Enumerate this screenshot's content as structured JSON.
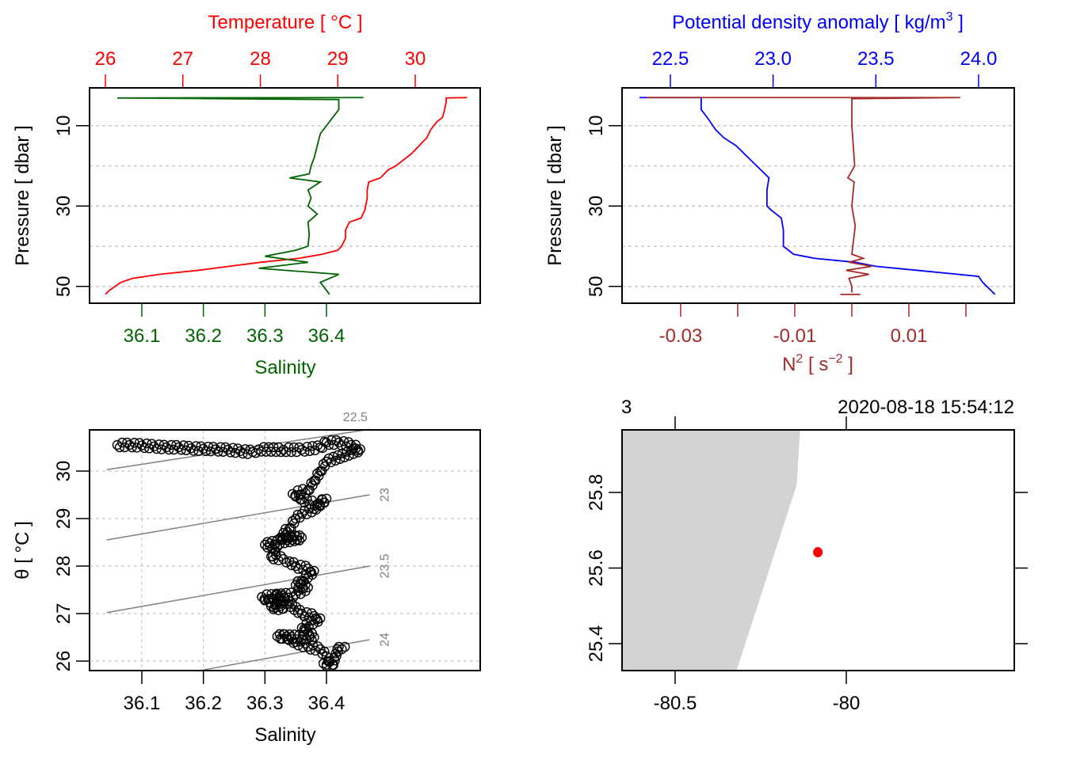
{
  "chart_data": [
    {
      "type": "line",
      "panel": "profile-temperature-salinity",
      "y_axis": {
        "label": "Pressure [ dbar ]",
        "ticks": [
          10,
          30,
          50
        ],
        "range": [
          0,
          53
        ],
        "reversed": true,
        "grid_at": [
          10,
          20,
          30,
          40,
          50
        ]
      },
      "top_axis": {
        "label": "Temperature [ °C ]",
        "ticks": [
          "26",
          "27",
          "28",
          "29",
          "30"
        ],
        "tick_values": [
          26,
          27,
          28,
          29,
          30
        ],
        "color": "#ff0000"
      },
      "bottom_axis": {
        "label": "Salinity",
        "ticks": [
          "36.1",
          "36.2",
          "36.3",
          "36.4"
        ],
        "tick_values": [
          36.1,
          36.2,
          36.3,
          36.4
        ],
        "color": "#006400"
      },
      "series": [
        {
          "name": "Temperature",
          "color": "#ff0000",
          "points": [
            [
              30.67,
              3
            ],
            [
              30.4,
              3.1
            ],
            [
              30.4,
              4
            ],
            [
              30.38,
              6
            ],
            [
              30.35,
              8
            ],
            [
              30.28,
              9
            ],
            [
              30.2,
              11
            ],
            [
              30.15,
              13
            ],
            [
              30.05,
              15
            ],
            [
              29.95,
              17
            ],
            [
              29.85,
              18.5
            ],
            [
              29.75,
              20
            ],
            [
              29.65,
              21
            ],
            [
              29.55,
              23
            ],
            [
              29.4,
              24
            ],
            [
              29.38,
              26
            ],
            [
              29.38,
              28
            ],
            [
              29.35,
              31
            ],
            [
              29.3,
              33
            ],
            [
              29.15,
              34
            ],
            [
              29.1,
              36
            ],
            [
              29.1,
              38
            ],
            [
              29.05,
              40
            ],
            [
              29.0,
              41
            ],
            [
              28.8,
              42
            ],
            [
              28.5,
              43
            ],
            [
              28.0,
              44
            ],
            [
              27.6,
              45
            ],
            [
              27.2,
              46
            ],
            [
              26.7,
              47
            ],
            [
              26.35,
              48
            ],
            [
              26.2,
              49
            ],
            [
              26.05,
              51
            ],
            [
              26.0,
              52
            ]
          ]
        },
        {
          "name": "Salinity",
          "color": "#006400",
          "points": [
            [
              36.46,
              3
            ],
            [
              36.06,
              3.1
            ],
            [
              36.42,
              3.5
            ],
            [
              36.42,
              6
            ],
            [
              36.41,
              8
            ],
            [
              36.4,
              10
            ],
            [
              36.39,
              12
            ],
            [
              36.385,
              15
            ],
            [
              36.38,
              18
            ],
            [
              36.375,
              20
            ],
            [
              36.372,
              22
            ],
            [
              36.34,
              23
            ],
            [
              36.39,
              24
            ],
            [
              36.37,
              26
            ],
            [
              36.375,
              28
            ],
            [
              36.37,
              30
            ],
            [
              36.385,
              32
            ],
            [
              36.37,
              34
            ],
            [
              36.372,
              37
            ],
            [
              36.37,
              40
            ],
            [
              36.35,
              41
            ],
            [
              36.3,
              42.5
            ],
            [
              36.37,
              44
            ],
            [
              36.29,
              45.5
            ],
            [
              36.42,
              47
            ],
            [
              36.39,
              49
            ],
            [
              36.4,
              51
            ],
            [
              36.405,
              52
            ]
          ]
        }
      ]
    },
    {
      "type": "line",
      "panel": "profile-density-n2",
      "y_axis": {
        "label": "Pressure [ dbar ]",
        "ticks": [
          10,
          30,
          50
        ],
        "range": [
          0,
          53
        ],
        "reversed": true,
        "grid_at": [
          10,
          20,
          30,
          40,
          50
        ]
      },
      "top_axis": {
        "label": "Potential density anomaly [ kg/m³ ]",
        "ticks": [
          "22.5",
          "23.0",
          "23.5",
          "24.0"
        ],
        "tick_values": [
          22.5,
          23.0,
          23.5,
          24.0
        ],
        "color": "#0000ff"
      },
      "bottom_axis": {
        "label": "N² [ s⁻² ]",
        "ticks": [
          "-0.03",
          "-0.01",
          "0.01"
        ],
        "tick_values": [
          -0.03,
          -0.02,
          -0.01,
          0,
          0.01,
          0.02
        ],
        "labeled_values": [
          -0.03,
          -0.01,
          0.01
        ],
        "color": "#a52a2a"
      },
      "series": [
        {
          "name": "Potential density anomaly",
          "color": "#0000ff",
          "points": [
            [
              22.35,
              3
            ],
            [
              22.65,
              3
            ],
            [
              22.65,
              6
            ],
            [
              22.68,
              8
            ],
            [
              22.72,
              11
            ],
            [
              22.76,
              13
            ],
            [
              22.82,
              15
            ],
            [
              22.88,
              18
            ],
            [
              22.92,
              20
            ],
            [
              22.96,
              22
            ],
            [
              22.98,
              23
            ],
            [
              22.97,
              26
            ],
            [
              22.97,
              30
            ],
            [
              22.99,
              31
            ],
            [
              23.04,
              33
            ],
            [
              23.05,
              36
            ],
            [
              23.05,
              40
            ],
            [
              23.1,
              42
            ],
            [
              23.2,
              43
            ],
            [
              23.4,
              44
            ],
            [
              23.5,
              45
            ],
            [
              23.7,
              46
            ],
            [
              23.9,
              47
            ],
            [
              24.0,
              47.5
            ],
            [
              24.02,
              49
            ],
            [
              24.08,
              52
            ]
          ]
        },
        {
          "name": "N2",
          "color": "#a52a2a",
          "points": [
            [
              -0.036,
              3
            ],
            [
              0.019,
              3
            ],
            [
              0.0,
              3.3
            ],
            [
              0.0,
              10
            ],
            [
              0.0005,
              20
            ],
            [
              -0.0007,
              23
            ],
            [
              0.0004,
              24
            ],
            [
              0.0,
              30
            ],
            [
              0.0006,
              35
            ],
            [
              0.0,
              42
            ],
            [
              0.002,
              43
            ],
            [
              -0.0005,
              44
            ],
            [
              0.0035,
              45
            ],
            [
              -0.001,
              46
            ],
            [
              0.003,
              47
            ],
            [
              -0.0005,
              48
            ],
            [
              0.0,
              50
            ],
            [
              0.0,
              51.5
            ]
          ]
        },
        {
          "name": "N2 bottom bar",
          "color": "#a52a2a",
          "points": [
            [
              -0.002,
              52
            ],
            [
              0.0015,
              52
            ]
          ]
        }
      ]
    },
    {
      "type": "scatter",
      "panel": "ts-diagram",
      "xlabel": "Salinity",
      "ylabel": "θ [ °C ]",
      "x_ticks": [
        "36.1",
        "36.2",
        "36.3",
        "36.4"
      ],
      "x_tick_values": [
        36.1,
        36.2,
        36.3,
        36.4
      ],
      "y_ticks": [
        "26",
        "27",
        "28",
        "29",
        "30"
      ],
      "y_tick_values": [
        26,
        27,
        28,
        29,
        30
      ],
      "xlim": [
        36.043,
        36.47
      ],
      "ylim": [
        25.79,
        30.87
      ],
      "isopycnals": [
        {
          "label": "22.5",
          "s0": 36.043,
          "t0": 30.03,
          "s1": 36.47,
          "t1": 30.88
        },
        {
          "label": "23",
          "s0": 36.043,
          "t0": 28.55,
          "s1": 36.47,
          "t1": 29.5
        },
        {
          "label": "23.5",
          "s0": 36.043,
          "t0": 27.02,
          "s1": 36.47,
          "t1": 28.0
        },
        {
          "label": "24",
          "s0": 36.19,
          "t0": 25.79,
          "s1": 36.47,
          "t1": 26.45
        }
      ],
      "points": [
        [
          36.06,
          30.55
        ],
        [
          36.08,
          30.55
        ],
        [
          36.1,
          30.54
        ],
        [
          36.12,
          30.52
        ],
        [
          36.14,
          30.5
        ],
        [
          36.16,
          30.5
        ],
        [
          36.18,
          30.48
        ],
        [
          36.2,
          30.47
        ],
        [
          36.22,
          30.46
        ],
        [
          36.24,
          30.45
        ],
        [
          36.26,
          30.42
        ],
        [
          36.28,
          30.4
        ],
        [
          36.29,
          30.46
        ],
        [
          36.33,
          30.45
        ],
        [
          36.36,
          30.45
        ],
        [
          36.39,
          30.5
        ],
        [
          36.4,
          30.6
        ],
        [
          36.42,
          30.6
        ],
        [
          36.44,
          30.55
        ],
        [
          36.455,
          30.46
        ],
        [
          36.4,
          30.2
        ],
        [
          36.39,
          30.0
        ],
        [
          36.38,
          29.8
        ],
        [
          36.37,
          29.6
        ],
        [
          36.345,
          29.52
        ],
        [
          36.355,
          29.5
        ],
        [
          36.36,
          29.4
        ],
        [
          36.385,
          29.3
        ],
        [
          36.4,
          29.42
        ],
        [
          36.38,
          29.2
        ],
        [
          36.36,
          29.1
        ],
        [
          36.35,
          29.0
        ],
        [
          36.34,
          28.8
        ],
        [
          36.33,
          28.7
        ],
        [
          36.325,
          28.6
        ],
        [
          36.36,
          28.6
        ],
        [
          36.3,
          28.45
        ],
        [
          36.32,
          28.4
        ],
        [
          36.31,
          28.2
        ],
        [
          36.33,
          28.15
        ],
        [
          36.34,
          28.1
        ],
        [
          36.35,
          28.0
        ],
        [
          36.37,
          27.95
        ],
        [
          36.38,
          27.9
        ],
        [
          36.36,
          27.7
        ],
        [
          36.35,
          27.6
        ],
        [
          36.37,
          27.55
        ],
        [
          36.35,
          27.4
        ],
        [
          36.295,
          27.35
        ],
        [
          36.305,
          27.3
        ],
        [
          36.32,
          27.2
        ],
        [
          36.31,
          27.15
        ],
        [
          36.33,
          27.1
        ],
        [
          36.32,
          27.4
        ],
        [
          36.36,
          27.0
        ],
        [
          36.38,
          26.95
        ],
        [
          36.39,
          26.9
        ],
        [
          36.36,
          26.7
        ],
        [
          36.37,
          26.6
        ],
        [
          36.38,
          26.5
        ],
        [
          36.32,
          26.52
        ],
        [
          36.335,
          26.52
        ],
        [
          36.35,
          26.4
        ],
        [
          36.37,
          26.3
        ],
        [
          36.39,
          26.25
        ],
        [
          36.4,
          26.1
        ],
        [
          36.405,
          26.0
        ],
        [
          36.395,
          25.95
        ],
        [
          36.41,
          25.92
        ],
        [
          36.42,
          26.3
        ],
        [
          36.43,
          26.3
        ]
      ]
    },
    {
      "type": "scatter",
      "panel": "map",
      "title_left": "3",
      "title_right": "2020-08-18 15:54:12",
      "x_ticks": [
        "-80.5",
        "-80"
      ],
      "x_tick_values": [
        -80.5,
        -80.0
      ],
      "y_ticks": [
        "25.4",
        "25.6",
        "25.8"
      ],
      "y_tick_values": [
        25.4,
        25.6,
        25.8
      ],
      "xlim": [
        -80.67,
        -79.53
      ],
      "ylim": [
        25.33,
        25.97
      ],
      "land_color": "#d3d3d3",
      "coastline": [
        [
          -80.67,
          25.97
        ],
        [
          -80.135,
          25.97
        ],
        [
          -80.145,
          25.82
        ],
        [
          -80.32,
          25.33
        ],
        [
          -80.67,
          25.33
        ]
      ],
      "station": {
        "lon": -80.083,
        "lat": 25.642,
        "color": "#ff0000"
      }
    }
  ]
}
